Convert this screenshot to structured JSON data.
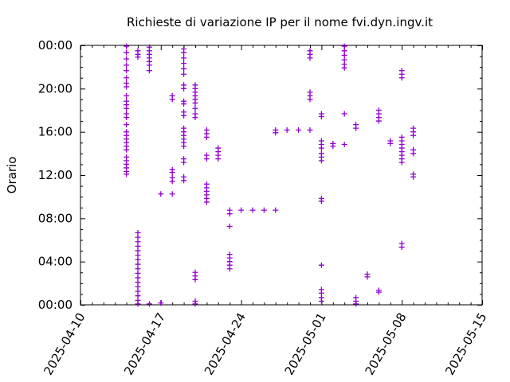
{
  "chart_data": {
    "type": "scatter",
    "title": "Richieste di variazione IP per il nome fvi.dyn.ingv.it",
    "xlabel": "",
    "ylabel": "Orario",
    "xlim": [
      "2025-04-10",
      "2025-05-15"
    ],
    "ylim": [
      "00:00",
      "24:00"
    ],
    "x_ticks": [
      "2025-04-10",
      "2025-04-17",
      "2025-04-24",
      "2025-05-01",
      "2025-05-08",
      "2025-05-15"
    ],
    "y_ticks": [
      "00:00",
      "04:00",
      "08:00",
      "12:00",
      "16:00",
      "20:00",
      "00:00"
    ],
    "grid": false,
    "marker": "+",
    "color": "#9400d3",
    "points": [
      [
        "2025-04-14 00:00",
        "23:55"
      ],
      [
        "2025-04-14 00:00",
        "23:20"
      ],
      [
        "2025-04-14 00:00",
        "22:45"
      ],
      [
        "2025-04-14 00:00",
        "22:10"
      ],
      [
        "2025-04-14 00:00",
        "21:40"
      ],
      [
        "2025-04-14 00:00",
        "21:00"
      ],
      [
        "2025-04-14 00:00",
        "20:30"
      ],
      [
        "2025-04-14 00:00",
        "20:10"
      ],
      [
        "2025-04-14 00:00",
        "19:20"
      ],
      [
        "2025-04-14 00:00",
        "18:50"
      ],
      [
        "2025-04-14 00:00",
        "18:30"
      ],
      [
        "2025-04-14 00:00",
        "18:10"
      ],
      [
        "2025-04-14 00:00",
        "17:40"
      ],
      [
        "2025-04-14 00:00",
        "17:20"
      ],
      [
        "2025-04-14 00:00",
        "16:40"
      ],
      [
        "2025-04-14 00:00",
        "16:00"
      ],
      [
        "2025-04-14 00:00",
        "15:40"
      ],
      [
        "2025-04-14 00:00",
        "15:20"
      ],
      [
        "2025-04-14 00:00",
        "15:00"
      ],
      [
        "2025-04-14 00:00",
        "14:40"
      ],
      [
        "2025-04-14 00:00",
        "14:20"
      ],
      [
        "2025-04-14 00:00",
        "13:40"
      ],
      [
        "2025-04-14 00:00",
        "13:20"
      ],
      [
        "2025-04-14 00:00",
        "13:00"
      ],
      [
        "2025-04-14 00:00",
        "12:40"
      ],
      [
        "2025-04-14 00:00",
        "12:20"
      ],
      [
        "2025-04-14 00:00",
        "12:05"
      ],
      [
        "2025-04-15 00:00",
        "23:30"
      ],
      [
        "2025-04-15 00:00",
        "23:10"
      ],
      [
        "2025-04-15 00:00",
        "22:55"
      ],
      [
        "2025-04-15 00:00",
        "06:40"
      ],
      [
        "2025-04-15 00:00",
        "06:15"
      ],
      [
        "2025-04-15 00:00",
        "05:50"
      ],
      [
        "2025-04-15 00:00",
        "05:25"
      ],
      [
        "2025-04-15 00:00",
        "05:00"
      ],
      [
        "2025-04-15 00:00",
        "04:35"
      ],
      [
        "2025-04-15 00:00",
        "04:10"
      ],
      [
        "2025-04-15 00:00",
        "03:45"
      ],
      [
        "2025-04-15 00:00",
        "03:20"
      ],
      [
        "2025-04-15 00:00",
        "02:55"
      ],
      [
        "2025-04-15 00:00",
        "02:30"
      ],
      [
        "2025-04-15 00:00",
        "02:05"
      ],
      [
        "2025-04-15 00:00",
        "01:40"
      ],
      [
        "2025-04-15 00:00",
        "01:15"
      ],
      [
        "2025-04-15 00:00",
        "00:50"
      ],
      [
        "2025-04-15 00:00",
        "00:25"
      ],
      [
        "2025-04-15 00:00",
        "00:05"
      ],
      [
        "2025-04-16 00:00",
        "23:50"
      ],
      [
        "2025-04-16 00:00",
        "23:30"
      ],
      [
        "2025-04-16 00:00",
        "23:10"
      ],
      [
        "2025-04-16 00:00",
        "22:50"
      ],
      [
        "2025-04-16 00:00",
        "22:30"
      ],
      [
        "2025-04-16 00:00",
        "22:10"
      ],
      [
        "2025-04-16 00:00",
        "21:40"
      ],
      [
        "2025-04-16 00:00",
        "00:05"
      ],
      [
        "2025-04-17 00:00",
        "10:15"
      ],
      [
        "2025-04-17 00:00",
        "00:10"
      ],
      [
        "2025-04-18 00:00",
        "19:20"
      ],
      [
        "2025-04-18 00:00",
        "19:00"
      ],
      [
        "2025-04-18 00:00",
        "12:30"
      ],
      [
        "2025-04-18 00:00",
        "12:15"
      ],
      [
        "2025-04-18 00:00",
        "11:45"
      ],
      [
        "2025-04-18 00:00",
        "11:25"
      ],
      [
        "2025-04-18 00:00",
        "10:15"
      ],
      [
        "2025-04-19 00:00",
        "23:40"
      ],
      [
        "2025-04-19 00:00",
        "23:20"
      ],
      [
        "2025-04-19 00:00",
        "22:50"
      ],
      [
        "2025-04-19 00:00",
        "22:20"
      ],
      [
        "2025-04-19 00:00",
        "21:50"
      ],
      [
        "2025-04-19 00:00",
        "21:20"
      ],
      [
        "2025-04-19 00:00",
        "20:20"
      ],
      [
        "2025-04-19 00:00",
        "20:00"
      ],
      [
        "2025-04-19 00:00",
        "18:50"
      ],
      [
        "2025-04-19 00:00",
        "18:35"
      ],
      [
        "2025-04-19 00:00",
        "17:50"
      ],
      [
        "2025-04-19 00:00",
        "17:30"
      ],
      [
        "2025-04-19 00:00",
        "16:20"
      ],
      [
        "2025-04-19 00:00",
        "16:00"
      ],
      [
        "2025-04-19 00:00",
        "15:40"
      ],
      [
        "2025-04-19 00:00",
        "15:20"
      ],
      [
        "2025-04-19 00:00",
        "15:00"
      ],
      [
        "2025-04-19 00:00",
        "14:40"
      ],
      [
        "2025-04-19 00:00",
        "13:30"
      ],
      [
        "2025-04-19 00:00",
        "13:10"
      ],
      [
        "2025-04-19 00:00",
        "11:50"
      ],
      [
        "2025-04-19 00:00",
        "11:30"
      ],
      [
        "2025-04-20 00:00",
        "20:20"
      ],
      [
        "2025-04-20 00:00",
        "20:00"
      ],
      [
        "2025-04-20 00:00",
        "19:40"
      ],
      [
        "2025-04-20 00:00",
        "19:20"
      ],
      [
        "2025-04-20 00:00",
        "19:00"
      ],
      [
        "2025-04-20 00:00",
        "18:40"
      ],
      [
        "2025-04-20 00:00",
        "18:10"
      ],
      [
        "2025-04-20 00:00",
        "17:40"
      ],
      [
        "2025-04-20 00:00",
        "17:20"
      ],
      [
        "2025-04-20 00:00",
        "03:00"
      ],
      [
        "2025-04-20 00:00",
        "02:40"
      ],
      [
        "2025-04-20 00:00",
        "02:20"
      ],
      [
        "2025-04-20 00:00",
        "00:20"
      ],
      [
        "2025-04-20 00:00",
        "00:05"
      ],
      [
        "2025-04-21 00:00",
        "16:10"
      ],
      [
        "2025-04-21 00:00",
        "15:50"
      ],
      [
        "2025-04-21 00:00",
        "15:30"
      ],
      [
        "2025-04-21 00:00",
        "13:50"
      ],
      [
        "2025-04-21 00:00",
        "13:30"
      ],
      [
        "2025-04-21 00:00",
        "11:10"
      ],
      [
        "2025-04-21 00:00",
        "10:50"
      ],
      [
        "2025-04-21 00:00",
        "10:30"
      ],
      [
        "2025-04-21 00:00",
        "10:10"
      ],
      [
        "2025-04-21 00:00",
        "09:50"
      ],
      [
        "2025-04-21 00:00",
        "09:30"
      ],
      [
        "2025-04-22 00:00",
        "14:30"
      ],
      [
        "2025-04-22 00:00",
        "14:10"
      ],
      [
        "2025-04-22 00:00",
        "13:50"
      ],
      [
        "2025-04-22 00:00",
        "13:30"
      ],
      [
        "2025-04-23 00:00",
        "08:45"
      ],
      [
        "2025-04-23 00:00",
        "08:25"
      ],
      [
        "2025-04-23 00:00",
        "07:15"
      ],
      [
        "2025-04-23 00:00",
        "04:40"
      ],
      [
        "2025-04-23 00:00",
        "04:20"
      ],
      [
        "2025-04-23 00:00",
        "04:00"
      ],
      [
        "2025-04-23 00:00",
        "03:40"
      ],
      [
        "2025-04-23 00:00",
        "03:20"
      ],
      [
        "2025-04-24 00:00",
        "08:45"
      ],
      [
        "2025-04-25 00:00",
        "08:45"
      ],
      [
        "2025-04-26 00:00",
        "08:45"
      ],
      [
        "2025-04-27 00:00",
        "08:45"
      ],
      [
        "2025-04-27 00:00",
        "16:10"
      ],
      [
        "2025-04-27 00:00",
        "15:55"
      ],
      [
        "2025-04-28 00:00",
        "16:10"
      ],
      [
        "2025-04-29 00:00",
        "16:10"
      ],
      [
        "2025-04-30 00:00",
        "16:10"
      ],
      [
        "2025-04-30 00:00",
        "23:30"
      ],
      [
        "2025-04-30 00:00",
        "23:10"
      ],
      [
        "2025-04-30 00:00",
        "22:50"
      ],
      [
        "2025-04-30 00:00",
        "19:40"
      ],
      [
        "2025-04-30 00:00",
        "19:20"
      ],
      [
        "2025-04-30 00:00",
        "19:00"
      ],
      [
        "2025-05-01 00:00",
        "17:40"
      ],
      [
        "2025-05-01 00:00",
        "17:25"
      ],
      [
        "2025-05-01 00:00",
        "15:10"
      ],
      [
        "2025-05-01 00:00",
        "14:50"
      ],
      [
        "2025-05-01 00:00",
        "14:30"
      ],
      [
        "2025-05-01 00:00",
        "14:00"
      ],
      [
        "2025-05-01 00:00",
        "13:40"
      ],
      [
        "2025-05-01 00:00",
        "13:20"
      ],
      [
        "2025-05-01 00:00",
        "09:50"
      ],
      [
        "2025-05-01 00:00",
        "09:35"
      ],
      [
        "2025-05-01 00:00",
        "03:40"
      ],
      [
        "2025-05-01 00:00",
        "01:25"
      ],
      [
        "2025-05-01 00:00",
        "01:05"
      ],
      [
        "2025-05-01 00:00",
        "00:40"
      ],
      [
        "2025-05-01 00:00",
        "00:20"
      ],
      [
        "2025-05-02 00:00",
        "14:55"
      ],
      [
        "2025-05-02 00:00",
        "14:40"
      ],
      [
        "2025-05-03 00:00",
        "23:55"
      ],
      [
        "2025-05-03 00:00",
        "23:30"
      ],
      [
        "2025-05-03 00:00",
        "23:05"
      ],
      [
        "2025-05-03 00:00",
        "22:40"
      ],
      [
        "2025-05-03 00:00",
        "22:15"
      ],
      [
        "2025-05-03 00:00",
        "21:55"
      ],
      [
        "2025-05-03 00:00",
        "17:40"
      ],
      [
        "2025-05-03 00:00",
        "14:50"
      ],
      [
        "2025-05-04 00:00",
        "16:40"
      ],
      [
        "2025-05-04 00:00",
        "16:20"
      ],
      [
        "2025-05-04 00:00",
        "00:40"
      ],
      [
        "2025-05-04 00:00",
        "00:20"
      ],
      [
        "2025-05-04 00:00",
        "00:05"
      ],
      [
        "2025-05-05 00:00",
        "02:50"
      ],
      [
        "2025-05-05 00:00",
        "02:35"
      ],
      [
        "2025-05-06 00:00",
        "18:00"
      ],
      [
        "2025-05-06 00:00",
        "17:40"
      ],
      [
        "2025-05-06 00:00",
        "17:20"
      ],
      [
        "2025-05-06 00:00",
        "17:00"
      ],
      [
        "2025-05-06 00:00",
        "01:20"
      ],
      [
        "2025-05-06 00:00",
        "01:10"
      ],
      [
        "2025-05-07 00:00",
        "15:10"
      ],
      [
        "2025-05-07 00:00",
        "14:55"
      ],
      [
        "2025-05-08 00:00",
        "21:40"
      ],
      [
        "2025-05-08 00:00",
        "21:20"
      ],
      [
        "2025-05-08 00:00",
        "21:00"
      ],
      [
        "2025-05-08 00:00",
        "15:30"
      ],
      [
        "2025-05-08 00:00",
        "15:10"
      ],
      [
        "2025-05-08 00:00",
        "14:50"
      ],
      [
        "2025-05-08 00:00",
        "14:30"
      ],
      [
        "2025-05-08 00:00",
        "14:10"
      ],
      [
        "2025-05-08 00:00",
        "13:50"
      ],
      [
        "2025-05-08 00:00",
        "13:30"
      ],
      [
        "2025-05-08 00:00",
        "13:10"
      ],
      [
        "2025-05-08 00:00",
        "05:40"
      ],
      [
        "2025-05-08 00:00",
        "05:20"
      ],
      [
        "2025-05-09 00:00",
        "16:20"
      ],
      [
        "2025-05-09 00:00",
        "16:00"
      ],
      [
        "2025-05-09 00:00",
        "15:40"
      ],
      [
        "2025-05-09 00:00",
        "14:20"
      ],
      [
        "2025-05-09 00:00",
        "14:00"
      ],
      [
        "2025-05-09 00:00",
        "12:05"
      ],
      [
        "2025-05-09 00:00",
        "11:50"
      ]
    ]
  }
}
